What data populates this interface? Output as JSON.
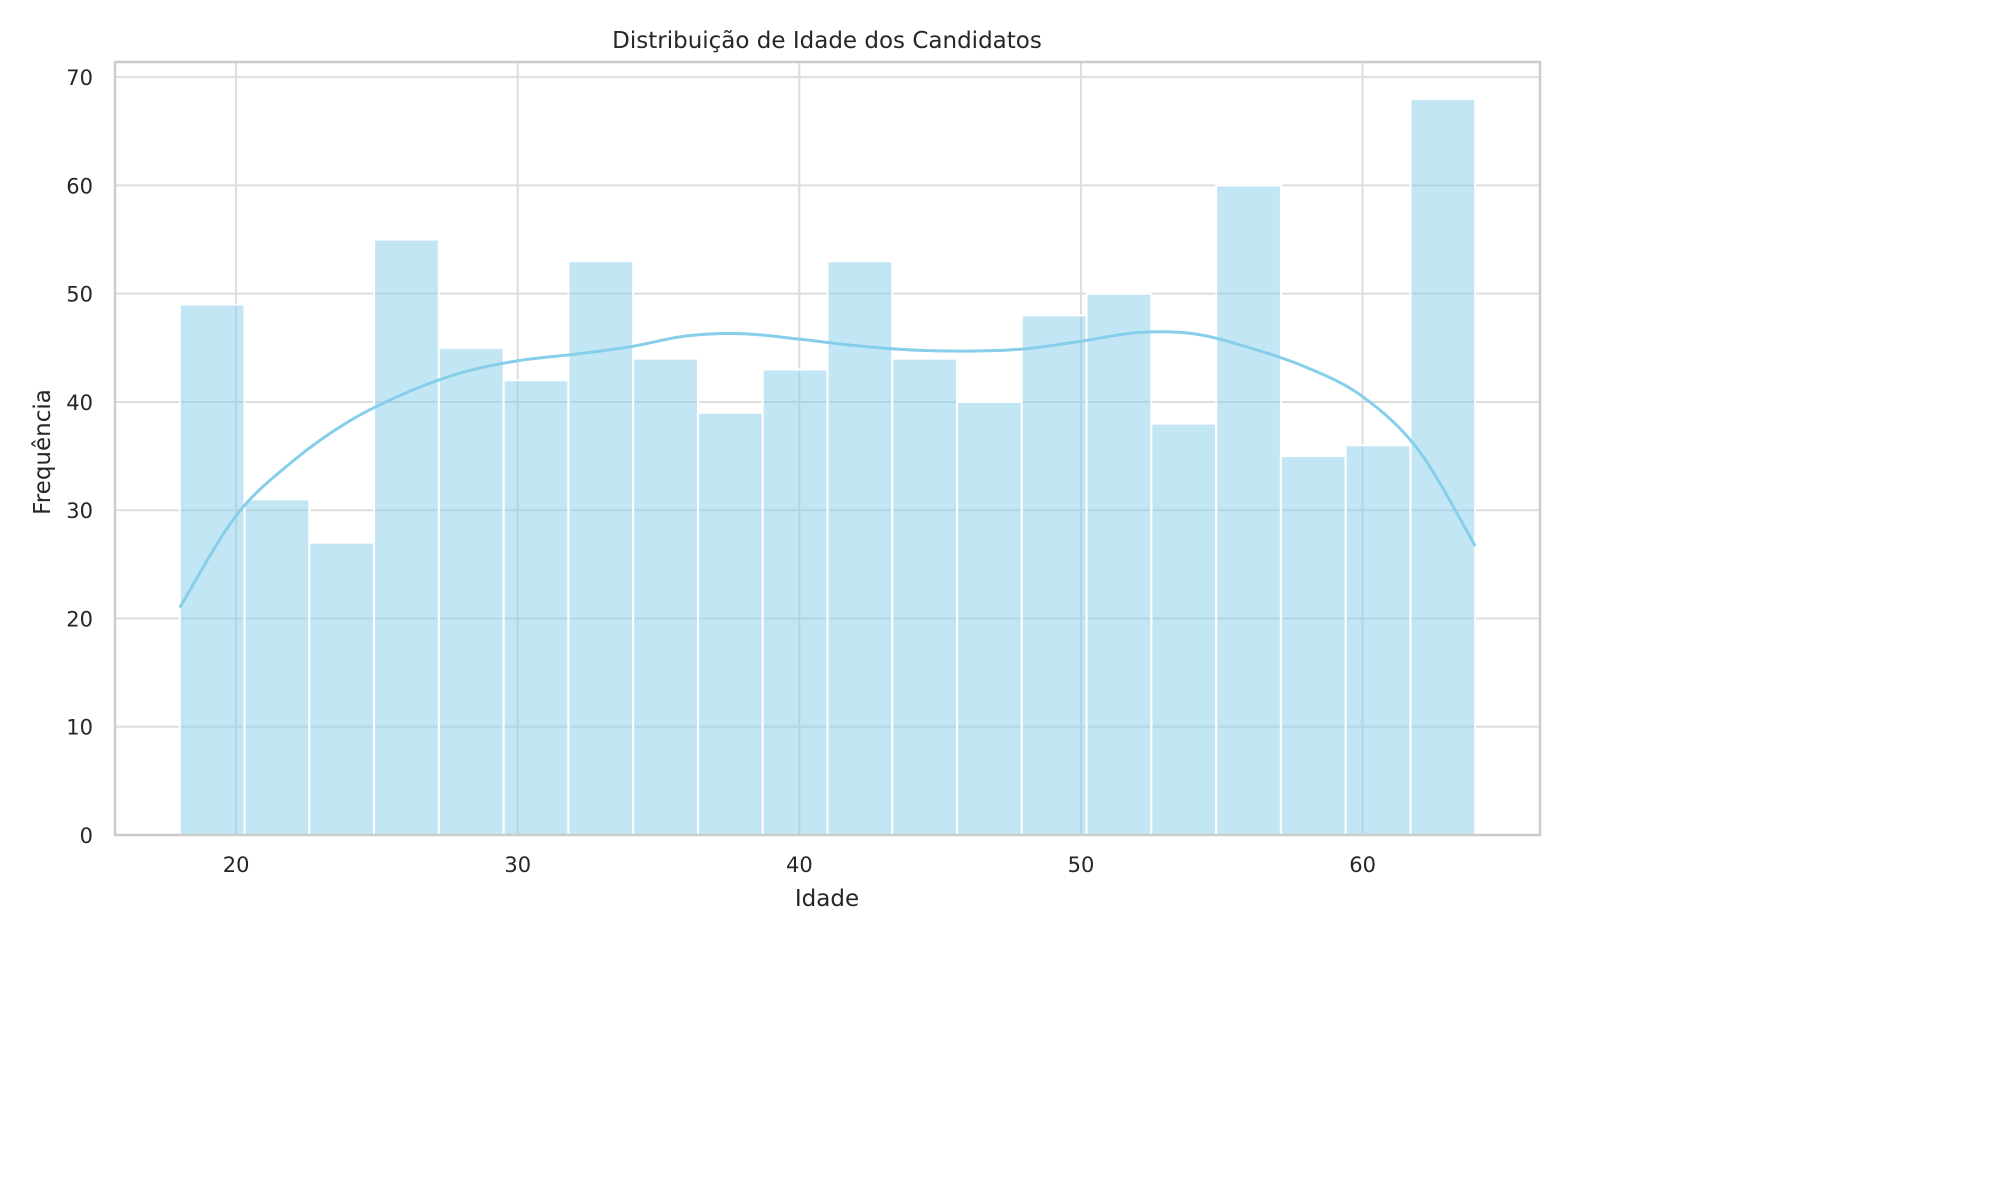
{
  "chart_data": {
    "type": "bar",
    "title": "Distribuição de Idade dos Candidatos",
    "xlabel": "Idade",
    "ylabel": "Frequência",
    "xlim": [
      15.7,
      66.3
    ],
    "ylim": [
      0,
      71.4
    ],
    "xticks": [
      20,
      30,
      40,
      50,
      60
    ],
    "yticks": [
      0,
      10,
      20,
      30,
      40,
      50,
      60,
      70
    ],
    "grid": true,
    "bin_start": 18,
    "bin_end": 64,
    "counts": [
      49,
      31,
      27,
      55,
      45,
      42,
      53,
      44,
      39,
      43,
      53,
      44,
      40,
      48,
      50,
      38,
      60,
      35,
      36,
      68
    ],
    "kde": {
      "x": [
        18,
        20,
        22,
        24,
        26,
        28,
        30,
        32,
        34,
        36,
        38,
        40,
        42,
        44,
        46,
        48,
        50,
        52,
        54,
        56,
        58,
        60,
        62,
        64
      ],
      "y": [
        21,
        29.5,
        34.5,
        38.2,
        40.8,
        42.7,
        43.8,
        44.4,
        45.1,
        46.1,
        46.3,
        45.8,
        45.2,
        44.8,
        44.7,
        44.9,
        45.6,
        46.4,
        46.3,
        45.0,
        43.2,
        40.5,
        35.5,
        26.7
      ]
    },
    "colors": {
      "bar_fill": "#87ceeb",
      "bar_opacity": 0.5,
      "bar_edge": "#ffffff",
      "kde_line": "#87ceeb",
      "grid": "#dddddd",
      "axes_edge": "#cccccc"
    }
  }
}
